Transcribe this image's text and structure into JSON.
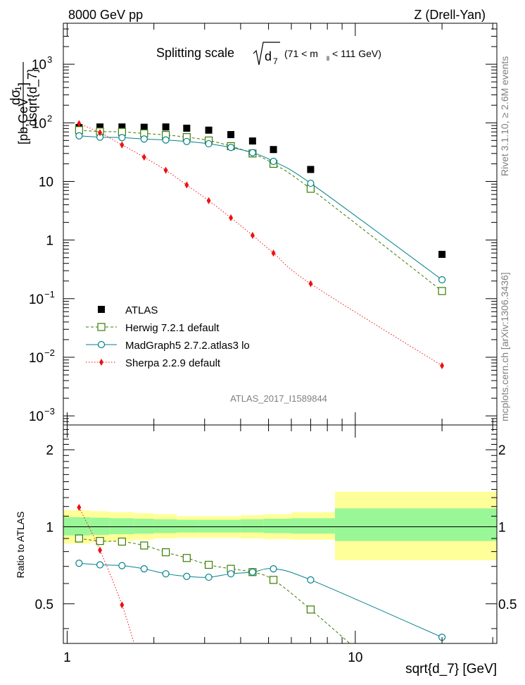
{
  "header": {
    "left": "8000 GeV pp",
    "right": "Z (Drell-Yan)"
  },
  "title": {
    "main": "Splitting scale",
    "symbol": "d",
    "symbol_sub": "7",
    "range_pre": "(71 < m",
    "range_sub": "ll",
    "range_post": " < 111 GeV)"
  },
  "ylabel": {
    "dsig": "dσ",
    "denom": "dsqrt{d_7}",
    "unit": "[pb,GeV",
    "unit_exp": "-1",
    "unit_close": "]"
  },
  "ratio_ylabel": "Ratio to ATLAS",
  "xlabel": "sqrt{d_7} [GeV]",
  "analysis_tag": "ATLAS_2017_I1589844",
  "side_text": {
    "top": "Rivet 3.1.10, ≥ 2.6M events",
    "bottom": "mcplots.cern.ch [arXiv:1306.3436]"
  },
  "ticks": {
    "main_y": [
      {
        "base": "10",
        "exp": "3",
        "value": 1000
      },
      {
        "base": "10",
        "exp": "2",
        "value": 100
      },
      {
        "base": "10",
        "exp": "",
        "value": 10
      },
      {
        "base": "1",
        "exp": "",
        "value": 1
      },
      {
        "base": "10",
        "exp": "−1",
        "value": 0.1
      },
      {
        "base": "10",
        "exp": "−2",
        "value": 0.01
      },
      {
        "base": "10",
        "exp": "−3",
        "value": 0.001
      }
    ],
    "ratio_y": [
      {
        "label": "2",
        "value": 2
      },
      {
        "label": "1",
        "value": 1
      },
      {
        "label": "0.5",
        "value": 0.5
      }
    ],
    "x": [
      {
        "label": "1",
        "value": 1
      },
      {
        "label": "10",
        "value": 10
      }
    ]
  },
  "colors": {
    "atlas": "#000000",
    "herwig": "#3a7d00",
    "madgraph": "#00828c",
    "sherpa": "#ee1111",
    "band_inner": "#99f797",
    "band_outer": "#ffff99"
  },
  "chart_data": {
    "type": "line",
    "x_scale": "log",
    "main_y_scale": "log",
    "ratio_y_scale": "log",
    "xlim": [
      0.97,
      31
    ],
    "main_ylim": [
      0.0007,
      5000
    ],
    "ratio_ylim": [
      0.35,
      2.5
    ],
    "x": [
      1.1,
      1.3,
      1.55,
      1.85,
      2.2,
      2.6,
      3.1,
      3.7,
      4.4,
      5.2,
      7.0,
      20.0
    ],
    "series": [
      {
        "name": "ATLAS",
        "key": "atlas",
        "marker": "square-filled",
        "style": "none",
        "values": [
          83,
          85,
          85,
          84,
          85,
          81,
          75,
          63,
          49,
          35,
          16,
          0.57
        ]
      },
      {
        "name": "Herwig 7.2.1 default",
        "key": "herwig",
        "marker": "square-open",
        "style": "dashed",
        "values": [
          75,
          71,
          70,
          66,
          62,
          57,
          50,
          40,
          30,
          20,
          7.5,
          0.135
        ]
      },
      {
        "name": "MadGraph5 2.7.2.atlas3 lo",
        "key": "madgraph",
        "marker": "circle-open",
        "style": "solid",
        "values": [
          60,
          57,
          56,
          53,
          51,
          48,
          44,
          38,
          31,
          22,
          9.3,
          0.21
        ]
      },
      {
        "name": "Sherpa 2.2.9 default",
        "key": "sherpa",
        "marker": "diamond-filled",
        "style": "dotted",
        "values": [
          97,
          68,
          42,
          26,
          15.5,
          8.7,
          4.7,
          2.4,
          1.2,
          0.6,
          0.18,
          0.0072
        ]
      }
    ],
    "ratio": {
      "herwig": {
        "x": [
          1.1,
          1.3,
          1.55,
          1.85,
          2.2,
          2.6,
          3.1,
          3.7,
          4.4,
          5.2,
          7.0,
          12.0
        ],
        "values": [
          0.9,
          0.88,
          0.875,
          0.845,
          0.795,
          0.755,
          0.71,
          0.685,
          0.665,
          0.62,
          0.475,
          0.28
        ]
      },
      "madgraph": {
        "x": [
          1.1,
          1.3,
          1.55,
          1.85,
          2.2,
          2.6,
          3.1,
          3.7,
          4.4,
          5.2,
          7.0,
          20.0
        ],
        "values": [
          0.72,
          0.71,
          0.705,
          0.685,
          0.655,
          0.64,
          0.635,
          0.655,
          0.665,
          0.685,
          0.62,
          0.37
        ]
      },
      "sherpa": {
        "x": [
          1.1,
          1.3,
          1.55,
          1.72
        ],
        "values": [
          1.19,
          0.81,
          0.495,
          0.34
        ]
      }
    },
    "bands": [
      {
        "x0": 0.97,
        "x1": 1.2,
        "inner": [
          0.925,
          1.09
        ],
        "outer": [
          0.86,
          1.16
        ]
      },
      {
        "x0": 1.2,
        "x1": 1.4,
        "inner": [
          0.93,
          1.085
        ],
        "outer": [
          0.87,
          1.15
        ]
      },
      {
        "x0": 1.4,
        "x1": 1.7,
        "inner": [
          0.935,
          1.08
        ],
        "outer": [
          0.88,
          1.14
        ]
      },
      {
        "x0": 1.7,
        "x1": 2.0,
        "inner": [
          0.94,
          1.075
        ],
        "outer": [
          0.89,
          1.13
        ]
      },
      {
        "x0": 2.0,
        "x1": 2.4,
        "inner": [
          0.945,
          1.07
        ],
        "outer": [
          0.9,
          1.12
        ]
      },
      {
        "x0": 2.4,
        "x1": 2.85,
        "inner": [
          0.95,
          1.065
        ],
        "outer": [
          0.905,
          1.1
        ]
      },
      {
        "x0": 2.85,
        "x1": 3.4,
        "inner": [
          0.95,
          1.065
        ],
        "outer": [
          0.905,
          1.1
        ]
      },
      {
        "x0": 3.4,
        "x1": 4.0,
        "inner": [
          0.95,
          1.065
        ],
        "outer": [
          0.905,
          1.1
        ]
      },
      {
        "x0": 4.0,
        "x1": 4.8,
        "inner": [
          0.95,
          1.07
        ],
        "outer": [
          0.9,
          1.11
        ]
      },
      {
        "x0": 4.8,
        "x1": 6.0,
        "inner": [
          0.945,
          1.075
        ],
        "outer": [
          0.895,
          1.12
        ]
      },
      {
        "x0": 6.0,
        "x1": 8.5,
        "inner": [
          0.94,
          1.08
        ],
        "outer": [
          0.89,
          1.14
        ]
      },
      {
        "x0": 8.5,
        "x1": 31,
        "inner": [
          0.88,
          1.18
        ],
        "outer": [
          0.74,
          1.37
        ]
      }
    ]
  }
}
